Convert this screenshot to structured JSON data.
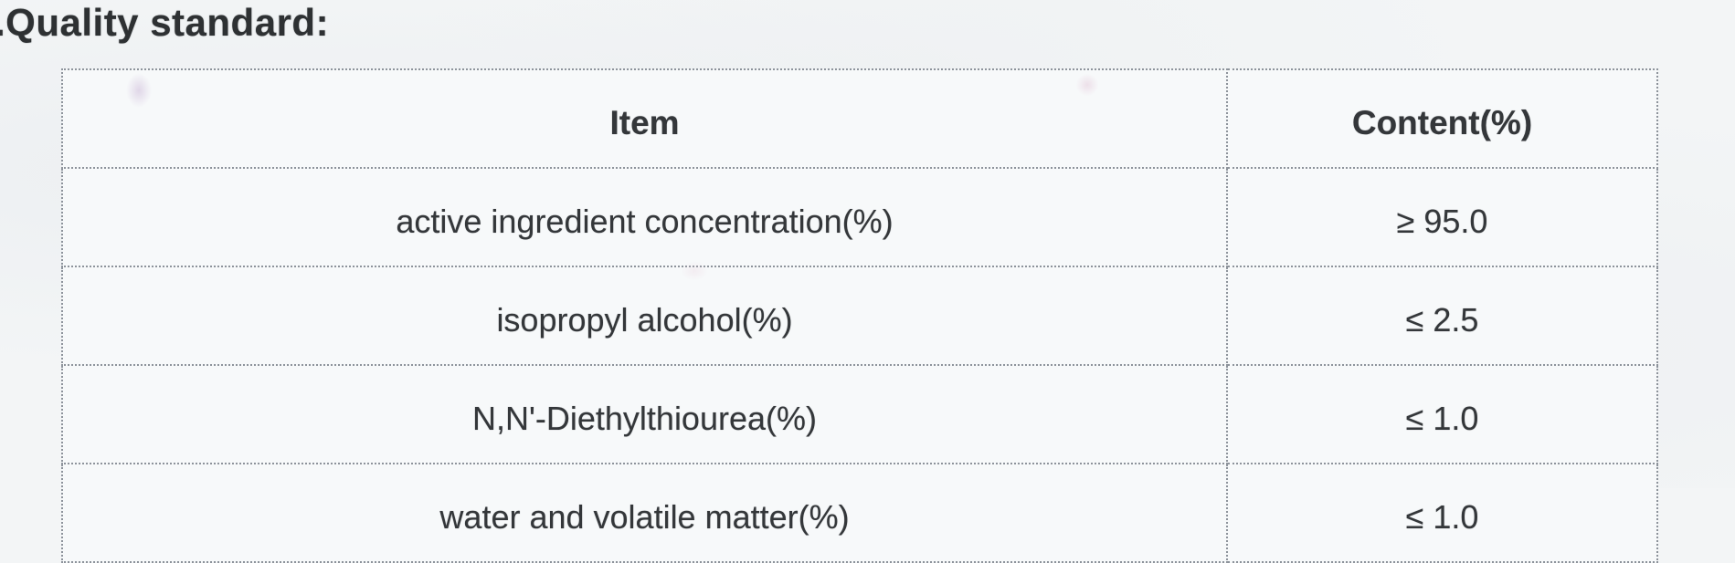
{
  "page": {
    "background_color": "#f3f5f6",
    "text_color": "#34373a",
    "border_color": "#8d939b"
  },
  "heading": {
    "text": ".Quality standard:"
  },
  "quality_table": {
    "header": {
      "item_label": "Item",
      "content_label": "Content(%)"
    },
    "rows": [
      {
        "item": "active ingredient concentration(%)",
        "content": "≥ 95.0"
      },
      {
        "item": "isopropyl alcohol(%)",
        "content": "≤ 2.5"
      },
      {
        "item": "N,N'-Diethylthiourea(%)",
        "content": "≤ 1.0"
      },
      {
        "item": "water and volatile matter(%)",
        "content": "≤ 1.0"
      }
    ]
  }
}
